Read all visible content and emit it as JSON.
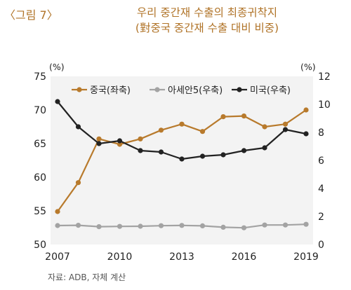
{
  "figure": {
    "label": "〈그림 7〉",
    "title_line1": "우리 중간재 수출의 최종귀착지",
    "title_line2": "(對중국 중간재 수출 대비 비중)",
    "source": "자료: ADB, 자체 계산"
  },
  "chart_data": {
    "type": "line",
    "x": [
      2007,
      2008,
      2009,
      2010,
      2011,
      2012,
      2013,
      2014,
      2015,
      2016,
      2017,
      2018,
      2019
    ],
    "xticks": [
      "2007",
      "2010",
      "2013",
      "2016",
      "2019"
    ],
    "left_axis": {
      "unit": "(%)",
      "ylim": [
        50,
        75
      ],
      "ticks": [
        "50",
        "55",
        "60",
        "65",
        "70",
        "75"
      ]
    },
    "right_axis": {
      "unit": "(%)",
      "ylim": [
        0,
        12
      ],
      "ticks": [
        "0",
        "2",
        "4",
        "6",
        "8",
        "10",
        "12"
      ]
    },
    "series": [
      {
        "name": "중국(좌축)",
        "axis": "left",
        "color": "#b87a2c",
        "values": [
          54.9,
          59.2,
          65.7,
          64.9,
          65.7,
          67.0,
          67.9,
          66.8,
          69.0,
          69.1,
          67.5,
          67.9,
          70.0
        ]
      },
      {
        "name": "아세안5(우축)",
        "axis": "right",
        "color": "#a3a3a3",
        "values": [
          1.35,
          1.37,
          1.27,
          1.29,
          1.3,
          1.34,
          1.36,
          1.33,
          1.23,
          1.19,
          1.39,
          1.39,
          1.44
        ]
      },
      {
        "name": "미국(우축)",
        "axis": "right",
        "color": "#222222",
        "values": [
          10.2,
          8.4,
          7.2,
          7.4,
          6.7,
          6.6,
          6.1,
          6.3,
          6.4,
          6.7,
          6.9,
          8.2,
          7.9
        ]
      }
    ],
    "legend_position": "top"
  }
}
